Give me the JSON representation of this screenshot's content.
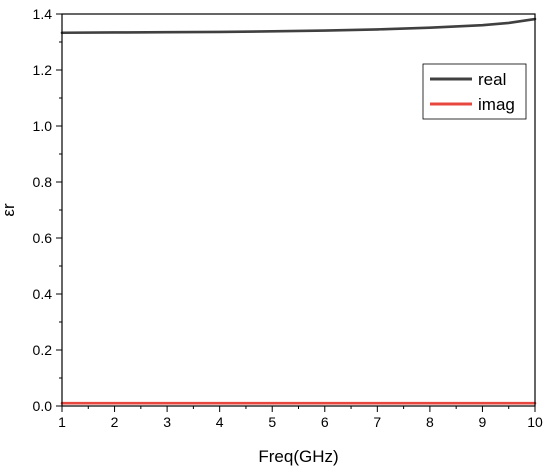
{
  "chart_data": {
    "type": "line",
    "title": "",
    "xlabel": "Freq(GHz)",
    "ylabel": "εr",
    "xlim": [
      1,
      10
    ],
    "ylim": [
      0,
      1.4
    ],
    "xticks": [
      "1",
      "2",
      "3",
      "4",
      "5",
      "6",
      "7",
      "8",
      "9",
      "10"
    ],
    "yticks": [
      "0.0",
      "0.2",
      "0.4",
      "0.6",
      "0.8",
      "1.0",
      "1.2",
      "1.4"
    ],
    "grid": false,
    "legend_position": "top-right",
    "series": [
      {
        "name": "real",
        "color": "#404040",
        "x": [
          1,
          2,
          3,
          4,
          5,
          6,
          7,
          8,
          9,
          9.5,
          10
        ],
        "y": [
          1.333,
          1.334,
          1.335,
          1.336,
          1.338,
          1.341,
          1.345,
          1.351,
          1.36,
          1.368,
          1.382
        ]
      },
      {
        "name": "imag",
        "color": "#e8473f",
        "x": [
          1,
          2,
          3,
          4,
          5,
          6,
          7,
          8,
          9,
          10
        ],
        "y": [
          0.01,
          0.01,
          0.01,
          0.01,
          0.01,
          0.01,
          0.01,
          0.01,
          0.01,
          0.01
        ]
      }
    ]
  }
}
